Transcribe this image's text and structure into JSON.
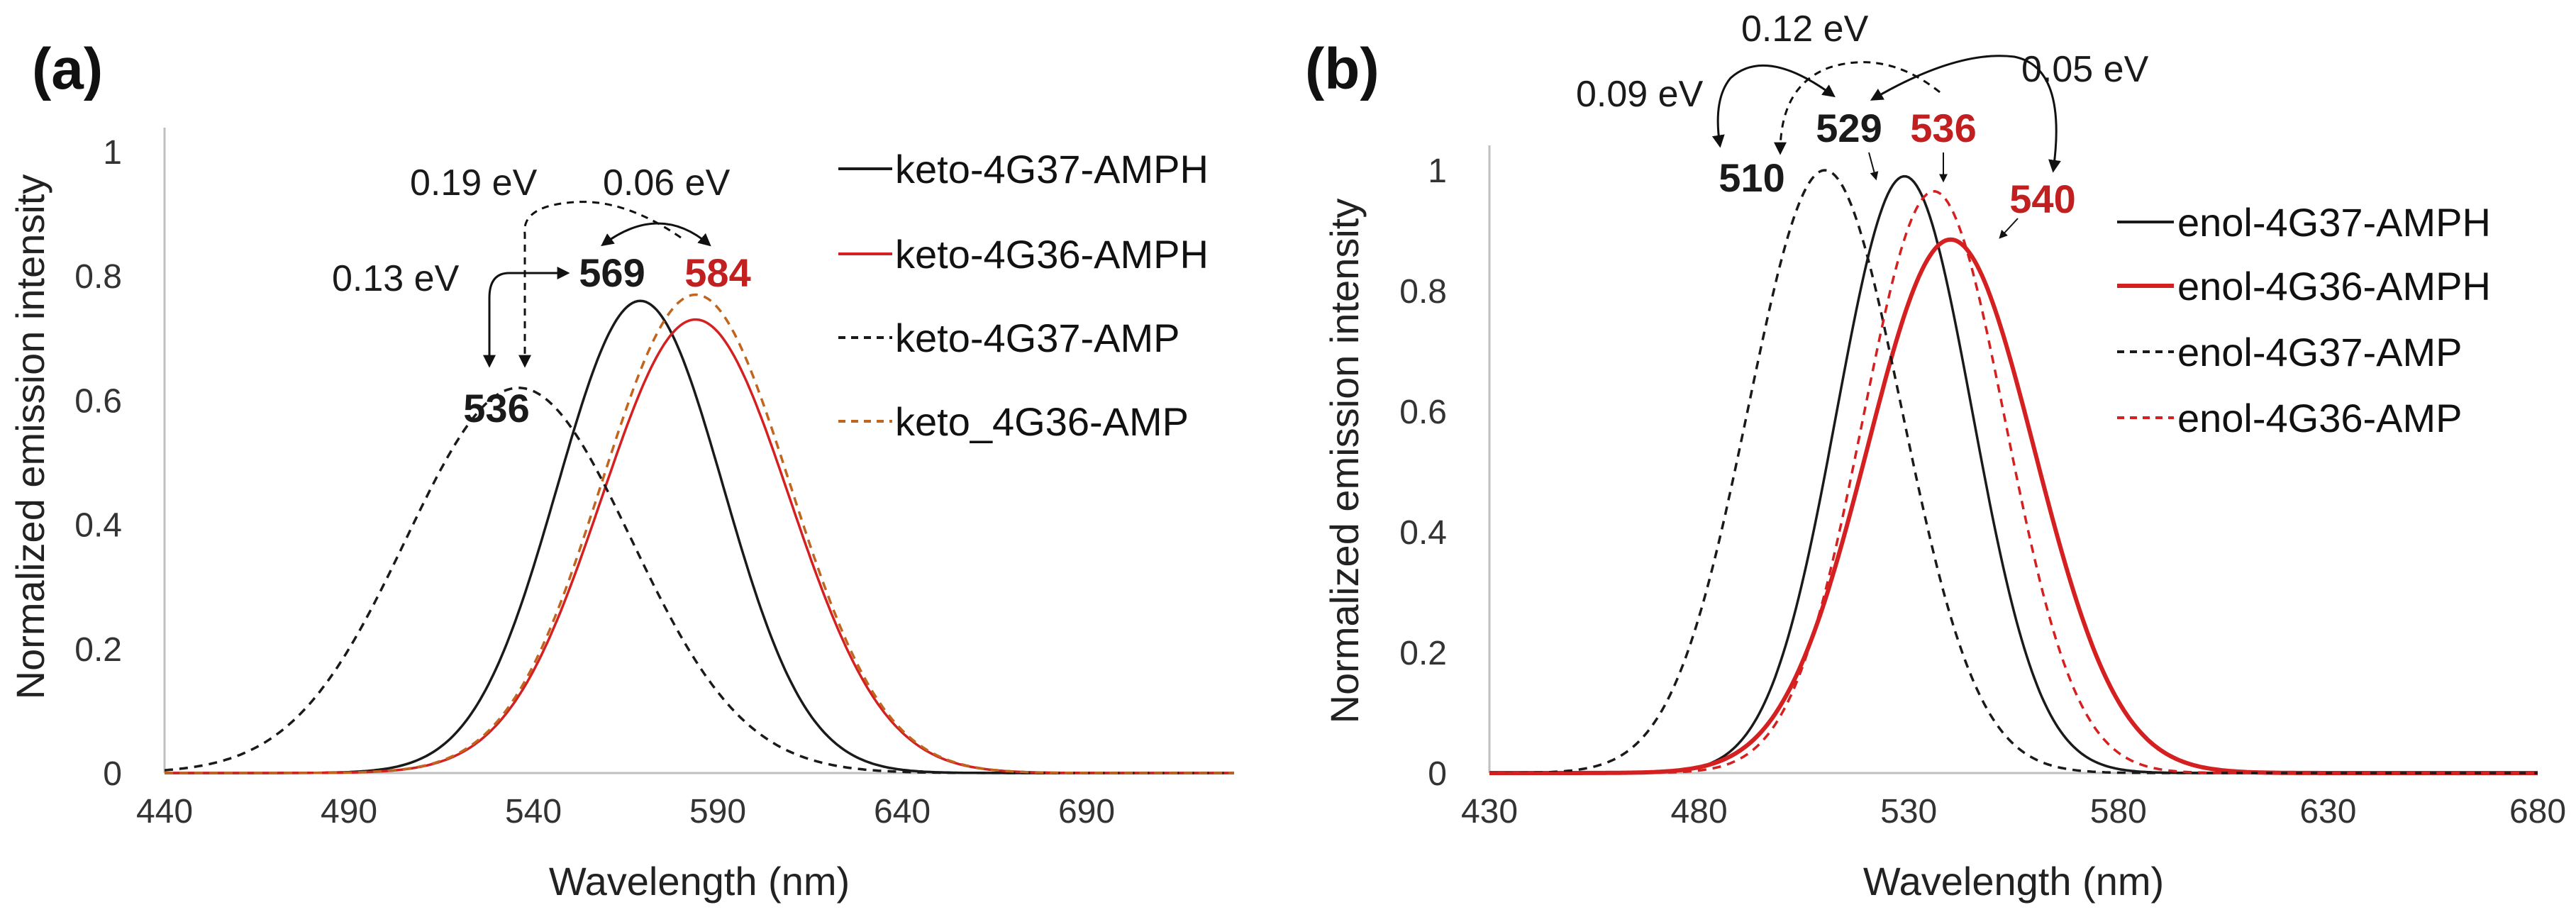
{
  "figure": {
    "panel_a_label": "(a)",
    "panel_b_label": "(b)"
  },
  "chart_data": [
    {
      "type": "line",
      "panel": "(a)",
      "title": "",
      "xlabel": "Wavelength (nm)",
      "ylabel": "Normalized emission intensity",
      "xlim": [
        440,
        730
      ],
      "ylim": [
        0,
        1
      ],
      "xticks": [
        440,
        490,
        540,
        590,
        640,
        690
      ],
      "xtick_labels": [
        "440",
        "490",
        "540",
        "590",
        "640",
        "690"
      ],
      "yticks": [
        0,
        0.2,
        0.4,
        0.6,
        0.8,
        1
      ],
      "ytick_labels": [
        "0",
        "0.2",
        "0.4",
        "0.6",
        "0.8",
        "1"
      ],
      "legend_position": "top-right",
      "series": [
        {
          "name": "keto-4G37-AMPH",
          "peak_nm": 569,
          "peak_height": 0.76,
          "fwhm_nm": 53,
          "color": "#1a1a1a",
          "dash": "solid"
        },
        {
          "name": "keto-4G36-AMPH",
          "peak_nm": 584,
          "peak_height": 0.73,
          "fwhm_nm": 60,
          "color": "#d42020",
          "dash": "solid"
        },
        {
          "name": "keto-4G37-AMP",
          "peak_nm": 536,
          "peak_height": 0.62,
          "fwhm_nm": 72,
          "color": "#1a1a1a",
          "dash": "dashed"
        },
        {
          "name": "keto_4G36-AMP",
          "peak_nm": 584,
          "peak_height": 0.77,
          "fwhm_nm": 60,
          "color": "#c0641e",
          "dash": "dashed"
        }
      ],
      "peak_labels": [
        {
          "text": "536",
          "nm": 536,
          "color": "#1a1a1a"
        },
        {
          "text": "569",
          "nm": 569,
          "color": "#1a1a1a"
        },
        {
          "text": "584",
          "nm": 584,
          "color": "#c22020"
        }
      ],
      "energy_annotations": [
        "0.13 eV",
        "0.19 eV",
        "0.06 eV"
      ]
    },
    {
      "type": "line",
      "panel": "(b)",
      "title": "",
      "xlabel": "Wavelength (nm)",
      "ylabel": "Normalized emission intensity",
      "xlim": [
        430,
        680
      ],
      "ylim": [
        0,
        1
      ],
      "xticks": [
        430,
        480,
        530,
        580,
        630,
        680
      ],
      "xtick_labels": [
        "430",
        "480",
        "530",
        "580",
        "630",
        "680"
      ],
      "yticks": [
        0,
        0.2,
        0.4,
        0.6,
        0.8,
        1
      ],
      "ytick_labels": [
        "0",
        "0.2",
        "0.4",
        "0.6",
        "0.8",
        "1"
      ],
      "legend_position": "top-right",
      "series": [
        {
          "name": "enol-4G37-AMPH",
          "peak_nm": 529,
          "peak_height": 0.99,
          "fwhm_nm": 38,
          "color": "#1a1a1a",
          "dash": "solid"
        },
        {
          "name": "enol-4G36-AMPH",
          "peak_nm": 540,
          "peak_height": 0.885,
          "fwhm_nm": 47,
          "color": "#d42020",
          "dash": "solid"
        },
        {
          "name": "enol-4G37-AMP",
          "peak_nm": 510,
          "peak_height": 1.0,
          "fwhm_nm": 43,
          "color": "#1a1a1a",
          "dash": "dashed"
        },
        {
          "name": "enol-4G36-AMP",
          "peak_nm": 536,
          "peak_height": 0.965,
          "fwhm_nm": 40,
          "color": "#d42020",
          "dash": "dashed"
        }
      ],
      "peak_labels": [
        {
          "text": "510",
          "nm": 510,
          "color": "#1a1a1a"
        },
        {
          "text": "529",
          "nm": 529,
          "color": "#1a1a1a"
        },
        {
          "text": "536",
          "nm": 536,
          "color": "#c22020"
        },
        {
          "text": "540",
          "nm": 540,
          "color": "#c22020"
        }
      ],
      "energy_annotations": [
        "0.09 eV",
        "0.12 eV",
        "0.05 eV"
      ]
    }
  ]
}
